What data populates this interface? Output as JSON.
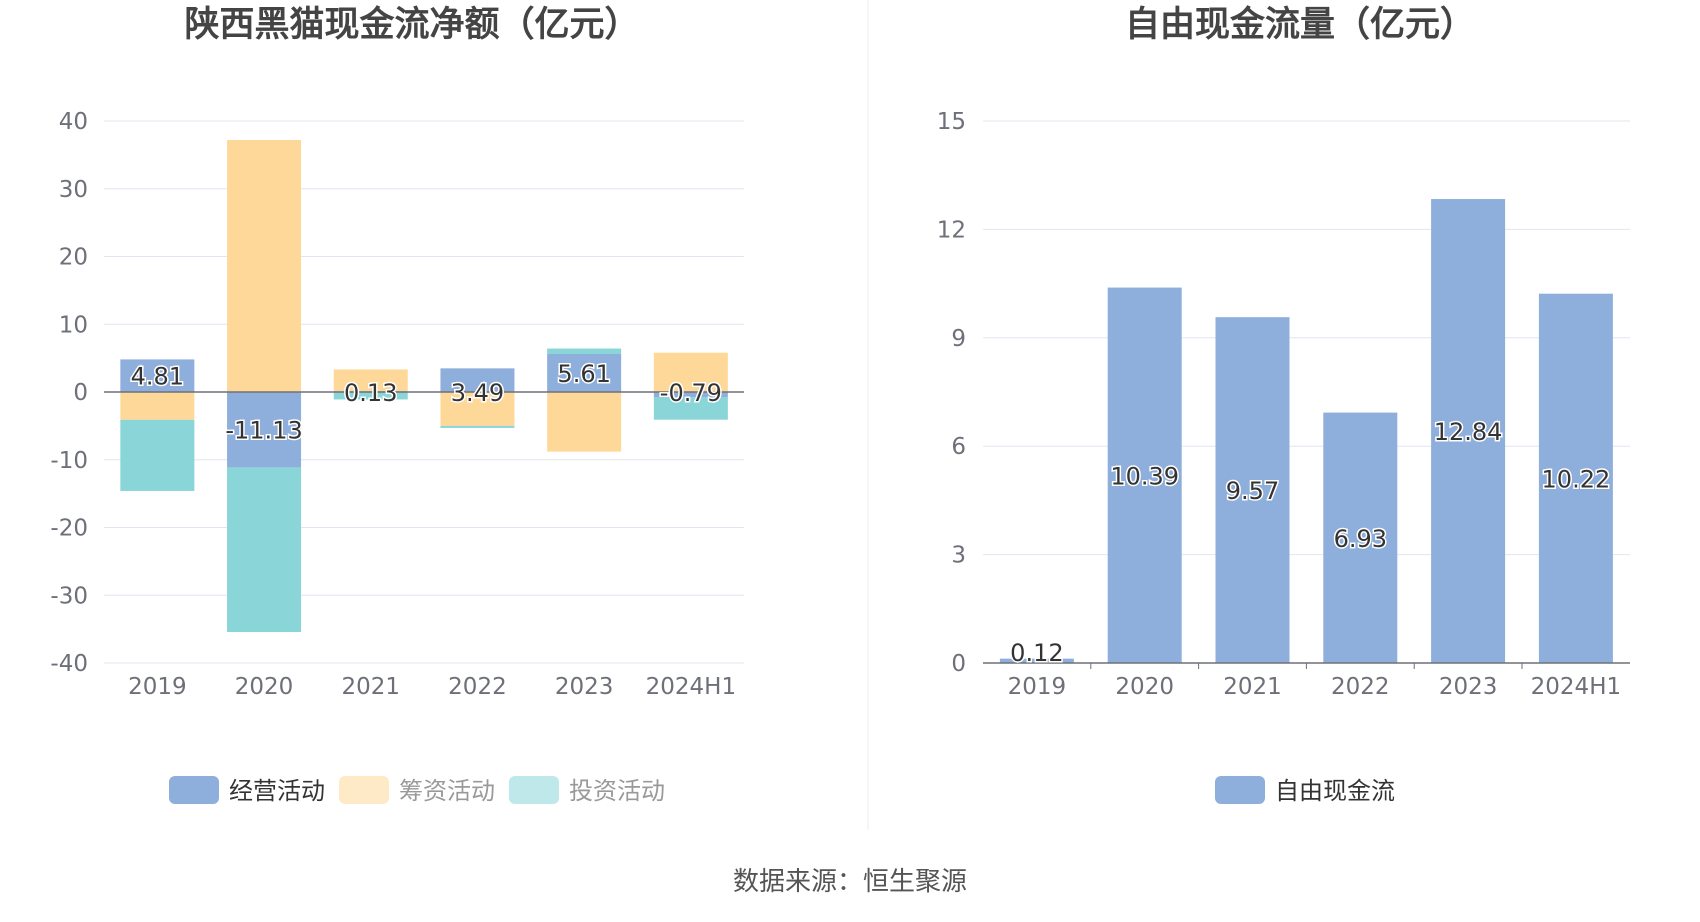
{
  "chart_data": [
    {
      "type": "bar",
      "stacked": true,
      "title": "陕西黑猫现金流净额（亿元）",
      "categories": [
        "2019",
        "2020",
        "2021",
        "2022",
        "2023",
        "2024H1"
      ],
      "ylim": [
        -40,
        40
      ],
      "yticks": [
        40,
        30,
        20,
        10,
        0,
        -10,
        -20,
        -30,
        -40
      ],
      "grid": true,
      "legend_position": "bottom",
      "series": [
        {
          "name": "经营活动",
          "color": "#8eaedb",
          "values": [
            4.81,
            -11.13,
            0.13,
            3.49,
            5.61,
            -0.79
          ]
        },
        {
          "name": "筹资活动",
          "color": "#fed899",
          "values": [
            -4.1,
            37.2,
            3.2,
            -5.0,
            -8.8,
            5.8
          ]
        },
        {
          "name": "投资活动",
          "color": "#89d5d8",
          "values": [
            -10.5,
            -24.3,
            -1.1,
            -0.3,
            0.8,
            -3.3
          ]
        }
      ],
      "data_labels": [
        "4.81",
        "-11.13",
        "0.13",
        "3.49",
        "5.61",
        "-0.79"
      ]
    },
    {
      "type": "bar",
      "title": "自由现金流量（亿元）",
      "categories": [
        "2019",
        "2020",
        "2021",
        "2022",
        "2023",
        "2024H1"
      ],
      "ylim": [
        0,
        15
      ],
      "yticks": [
        15,
        12,
        9,
        6,
        3,
        0
      ],
      "grid": true,
      "legend_position": "bottom",
      "series": [
        {
          "name": "自由现金流",
          "color": "#8eaedb",
          "values": [
            0.12,
            10.39,
            9.57,
            6.93,
            12.84,
            10.22
          ]
        }
      ],
      "data_labels": [
        "0.12",
        "10.39",
        "9.57",
        "6.93",
        "12.84",
        "10.22"
      ]
    }
  ],
  "source_text": "数据来源：恒生聚源"
}
